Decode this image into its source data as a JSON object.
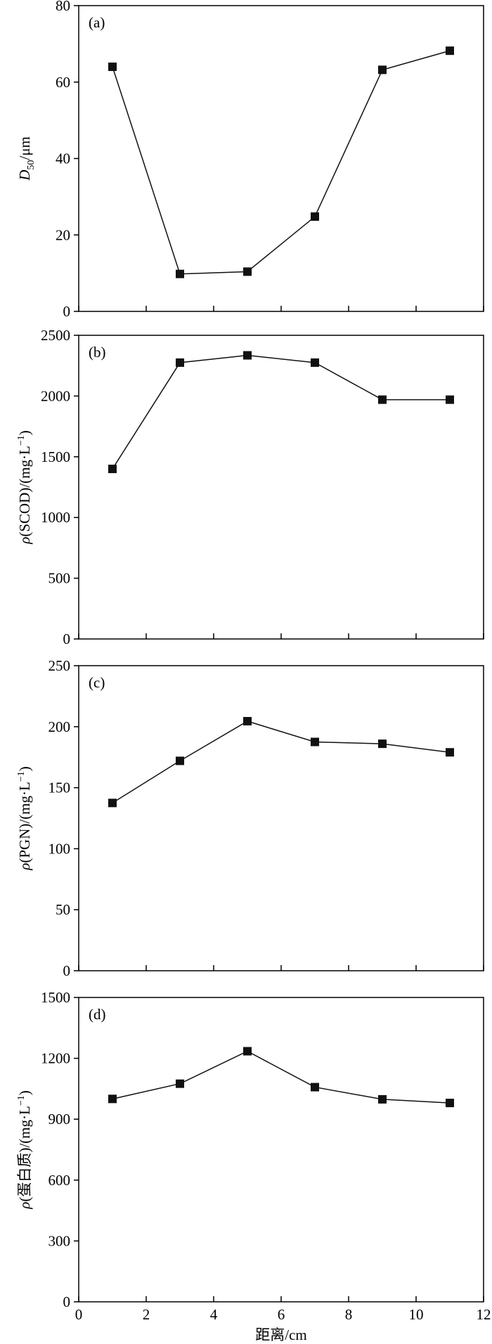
{
  "chart_data": [
    {
      "type": "line",
      "panel_label": "(a)",
      "ylabel_parts": {
        "main": "D",
        "sub": "50",
        "rest": "/μm"
      },
      "x": [
        1,
        3,
        5,
        7,
        9,
        11
      ],
      "values": [
        64,
        9.8,
        10.4,
        24.8,
        63.2,
        68.2
      ],
      "xlim": [
        0,
        12
      ],
      "ylim": [
        0,
        80
      ],
      "xticks": [
        0,
        2,
        4,
        6,
        8,
        10,
        12
      ],
      "yticks": [
        0,
        20,
        40,
        60,
        80
      ],
      "ytick_labels": [
        "0",
        "20",
        "40",
        "60",
        "80"
      ],
      "marker": "square",
      "color": "#111111",
      "grid": false
    },
    {
      "type": "line",
      "panel_label": "(b)",
      "ylabel_parts": {
        "main": "ρ",
        "rest": "(SCOD)/(mg·L",
        "sup": "−1",
        "close": ")"
      },
      "x": [
        1,
        3,
        5,
        7,
        9,
        11
      ],
      "values": [
        1400,
        2275,
        2335,
        2275,
        1970,
        1970
      ],
      "xlim": [
        0,
        12
      ],
      "ylim": [
        0,
        2500
      ],
      "xticks": [
        0,
        2,
        4,
        6,
        8,
        10,
        12
      ],
      "yticks": [
        0,
        500,
        1000,
        1500,
        2000,
        2500
      ],
      "ytick_labels": [
        "0",
        "500",
        "1000",
        "1500",
        "2000",
        "2500"
      ],
      "marker": "square",
      "color": "#111111",
      "grid": false
    },
    {
      "type": "line",
      "panel_label": "(c)",
      "ylabel_parts": {
        "main": "ρ",
        "rest": "(PGN)/(mg·L",
        "sup": "−1",
        "close": ")"
      },
      "x": [
        1,
        3,
        5,
        7,
        9,
        11
      ],
      "values": [
        137.5,
        172,
        204.5,
        187.5,
        186,
        179
      ],
      "xlim": [
        0,
        12
      ],
      "ylim": [
        0,
        250
      ],
      "xticks": [
        0,
        2,
        4,
        6,
        8,
        10,
        12
      ],
      "yticks": [
        0,
        50,
        100,
        150,
        200,
        250
      ],
      "ytick_labels": [
        "0",
        "50",
        "100",
        "150",
        "200",
        "250"
      ],
      "marker": "square",
      "color": "#111111",
      "grid": false
    },
    {
      "type": "line",
      "panel_label": "(d)",
      "ylabel_parts": {
        "main": "ρ",
        "rest": "(蛋白质)/(mg·L",
        "sup": "−1",
        "close": ")"
      },
      "xlabel": "距离/cm",
      "x": [
        1,
        3,
        5,
        7,
        9,
        11
      ],
      "values": [
        1000,
        1075,
        1235,
        1058,
        998,
        980
      ],
      "xlim": [
        0,
        12
      ],
      "ylim": [
        0,
        1500
      ],
      "xticks": [
        0,
        2,
        4,
        6,
        8,
        10,
        12
      ],
      "xtick_labels": [
        "0",
        "2",
        "4",
        "6",
        "8",
        "10",
        "12"
      ],
      "yticks": [
        0,
        300,
        600,
        900,
        1200,
        1500
      ],
      "ytick_labels": [
        "0",
        "300",
        "600",
        "900",
        "1200",
        "1500"
      ],
      "marker": "square",
      "color": "#111111",
      "grid": false
    }
  ]
}
